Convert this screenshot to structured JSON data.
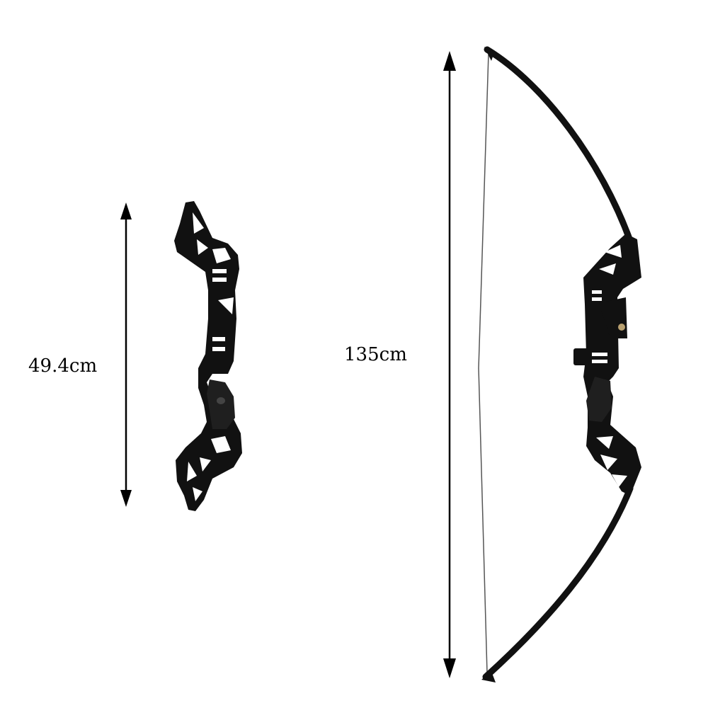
{
  "measurements": {
    "riser_length": "49.4cm",
    "bow_length": "135cm"
  },
  "colors": {
    "background": "#ffffff",
    "product": "#111111",
    "cutout": "#ffffff",
    "arrow": "#000000",
    "string": "#555555"
  },
  "icons": {
    "riser": "bow-riser-image",
    "bow": "assembled-recurve-bow-image"
  }
}
